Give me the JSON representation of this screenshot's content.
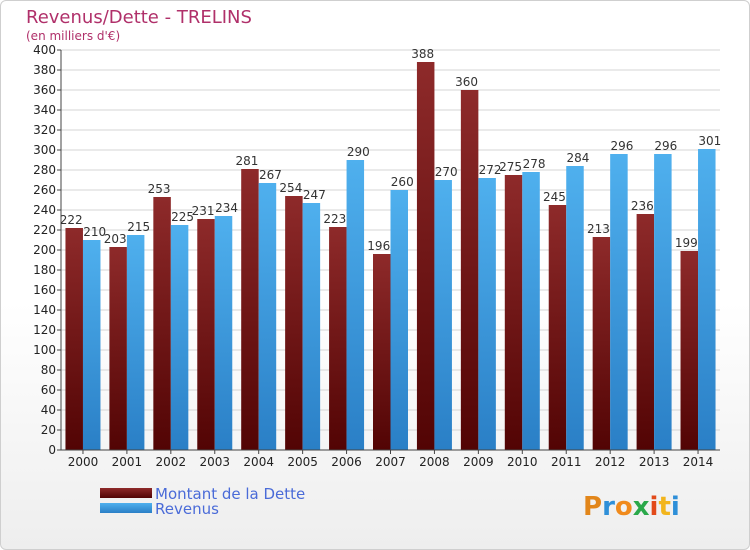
{
  "chart_data": {
    "type": "bar",
    "title": "Revenus/Dette - TRELINS",
    "subtitle": "(en milliers d'€)",
    "categories": [
      "2000",
      "2001",
      "2002",
      "2003",
      "2004",
      "2005",
      "2006",
      "2007",
      "2008",
      "2009",
      "2010",
      "2011",
      "2012",
      "2013",
      "2014"
    ],
    "series": [
      {
        "name": "Montant de la Dette",
        "color": "#7a1a1a",
        "values": [
          222,
          203,
          253,
          231,
          281,
          254,
          223,
          196,
          388,
          360,
          275,
          245,
          213,
          236,
          199
        ],
        "labels": [
          "222",
          "203",
          "253",
          "231",
          "281",
          "254",
          "223",
          "196",
          "388",
          "360",
          "275",
          "245",
          "213",
          "236",
          "199"
        ]
      },
      {
        "name": "Revenus",
        "color": "#3c9be2",
        "values": [
          210,
          215,
          225,
          234,
          267,
          247,
          290,
          260,
          270,
          272,
          278,
          284,
          296,
          296,
          301
        ],
        "labels": [
          "210",
          "215",
          "225",
          "234",
          "267",
          "247",
          "290",
          "260",
          "270",
          "272",
          "278",
          "284",
          "296",
          "296",
          "301"
        ]
      }
    ],
    "ylim": [
      0,
      400
    ],
    "ytick_step": 20,
    "grid": true,
    "legend_position": "bottom-left"
  },
  "logo": {
    "text": "Proxiti"
  }
}
